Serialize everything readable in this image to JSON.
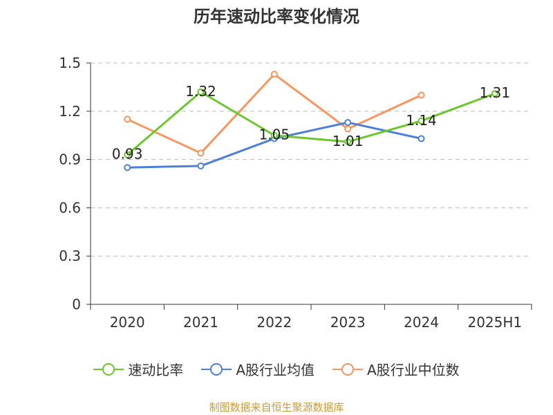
{
  "title": "历年速动比率变化情况",
  "source": "制图数据来自恒生聚源数据库",
  "chart_data": {
    "type": "line",
    "categories": [
      "2020",
      "2021",
      "2022",
      "2023",
      "2024",
      "2025H1"
    ],
    "ylim": [
      0,
      1.5
    ],
    "yticks": [
      0,
      0.3,
      0.6,
      0.9,
      1.2,
      1.5
    ],
    "ytick_labels": [
      "0",
      "0.3",
      "0.6",
      "0.9",
      "1.2",
      "1.5"
    ],
    "grid": true,
    "legend_position": "bottom",
    "series": [
      {
        "name": "速动比率",
        "color": "#6cc72b",
        "values": [
          0.93,
          1.32,
          1.05,
          1.01,
          1.14,
          1.31
        ],
        "labels": [
          "0.93",
          "1.32",
          "1.05",
          "1.01",
          "1.14",
          "1.31"
        ]
      },
      {
        "name": "A股行业均值",
        "color": "#4b7fd8",
        "values": [
          0.85,
          0.86,
          1.03,
          1.13,
          1.03,
          null
        ],
        "labels": []
      },
      {
        "name": "A股行业中位数",
        "color": "#f7965e",
        "values": [
          1.15,
          0.94,
          1.43,
          1.09,
          1.3,
          null
        ],
        "labels": []
      }
    ]
  }
}
